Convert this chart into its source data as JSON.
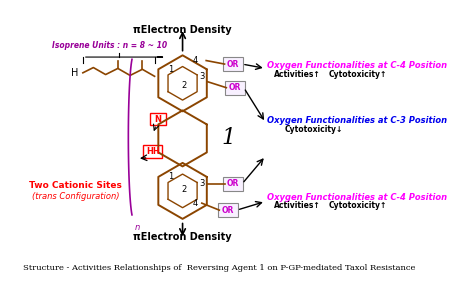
{
  "title": "Structure - Activities Relationships of  Reversing Agent 1 on P-GP-mediated Taxol Resistance",
  "pi_electron_density": "πElectron Density",
  "isoprene_label": "Isoprene Units : n = 8 ~ 10",
  "two_cationic_label1": "Two Cationic Sites",
  "two_cationic_label2": "(trans Configuration)",
  "oxy_c4_top_label": "Oxygen Functionalities at C-4 Position",
  "oxy_c4_top_sub1": "Activities↑",
  "oxy_c4_top_sub2": "Cytotoxicity↑",
  "oxy_c3_label": "Oxygen Functionalities at C-3 Position",
  "oxy_c3_sub": "Cytotoxicity↓",
  "oxy_c4_bot_label": "Oxygen Functionalities at C-4 Position",
  "oxy_c4_bot_sub1": "Activities↑",
  "oxy_c4_bot_sub2": "Cytotoxicity↑",
  "bg_color": "#ffffff",
  "structure_color": "#8B4500",
  "magenta_color": "#FF00FF",
  "blue_color": "#0000EE",
  "red_color": "#FF0000",
  "purple_color": "#990099",
  "black_color": "#000000",
  "or_border_color": "#888888",
  "or_text_color": "#cc00cc"
}
